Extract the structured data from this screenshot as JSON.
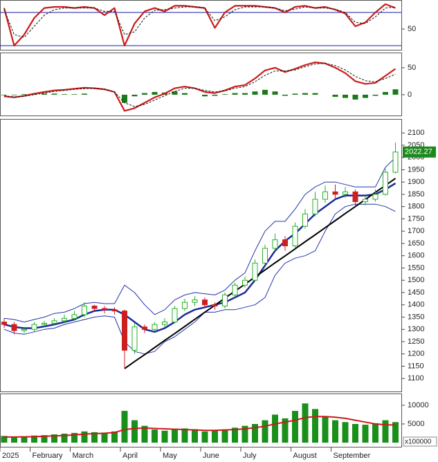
{
  "chart_data": [
    {
      "type": "line",
      "ylim": [
        15,
        100
      ],
      "yticks": [
        50
      ],
      "hlines": [
        80,
        20
      ],
      "hline_color": "#1a1aa0",
      "series": [
        {
          "color": "#cc1a1a",
          "linewidth": 2.2,
          "values": [
            88,
            20,
            40,
            70,
            88,
            90,
            90,
            88,
            90,
            88,
            75,
            88,
            20,
            60,
            82,
            88,
            82,
            92,
            92,
            90,
            88,
            52,
            80,
            92,
            92,
            92,
            90,
            88,
            80,
            90,
            92,
            88,
            90,
            85,
            78,
            55,
            62,
            80,
            95,
            88
          ]
        },
        {
          "color": "#111111",
          "linewidth": 1,
          "line_style": "dashed",
          "values": [
            85,
            40,
            35,
            55,
            75,
            85,
            88,
            88,
            88,
            88,
            82,
            82,
            40,
            45,
            70,
            84,
            85,
            88,
            90,
            90,
            88,
            65,
            72,
            85,
            90,
            90,
            90,
            88,
            83,
            86,
            90,
            88,
            88,
            86,
            80,
            62,
            60,
            72,
            88,
            90
          ]
        }
      ]
    },
    {
      "type": "combo",
      "ylim": [
        -36,
        73
      ],
      "yticks": [
        0,
        50
      ],
      "bars": {
        "color": "#1a7a1a",
        "values": [
          -1,
          -1,
          1,
          2,
          2,
          2,
          1,
          1,
          2,
          0,
          0,
          0,
          -15,
          -3,
          3,
          5,
          4,
          6,
          3,
          0,
          -3,
          -2,
          1,
          3,
          3,
          6,
          9,
          6,
          -2,
          2,
          3,
          3,
          0,
          -4,
          -6,
          -9,
          -6,
          -2,
          5,
          10
        ]
      },
      "series": [
        {
          "color": "#cc1a1a",
          "linewidth": 2.2,
          "values": [
            -3,
            -5,
            -2,
            2,
            5,
            8,
            9,
            11,
            13,
            12,
            10,
            5,
            -30,
            -25,
            -15,
            -5,
            2,
            12,
            15,
            12,
            5,
            3,
            8,
            15,
            18,
            30,
            45,
            50,
            42,
            48,
            55,
            60,
            58,
            50,
            40,
            25,
            20,
            22,
            35,
            48
          ]
        },
        {
          "color": "#111111",
          "linewidth": 1,
          "line_style": "dashed",
          "values": [
            -2,
            -4,
            -3,
            0,
            3,
            6,
            8,
            10,
            11,
            12,
            10,
            5,
            -15,
            -22,
            -18,
            -10,
            -2,
            6,
            12,
            12,
            8,
            5,
            7,
            12,
            15,
            24,
            36,
            44,
            44,
            46,
            52,
            57,
            58,
            54,
            46,
            34,
            26,
            24,
            30,
            38
          ]
        }
      ]
    },
    {
      "type": "candlestick",
      "ylim": [
        1050,
        2140
      ],
      "yticks": [
        1100,
        1150,
        1200,
        1250,
        1300,
        1350,
        1400,
        1450,
        1500,
        1550,
        1600,
        1650,
        1700,
        1750,
        1800,
        1850,
        1900,
        1950,
        2000,
        2050,
        2100
      ],
      "up_color": "#22b022",
      "down_color": "#cc2020",
      "last_label_color": "#1a8a1a",
      "open": [
        1330,
        1320,
        1295,
        1300,
        1320,
        1325,
        1335,
        1345,
        1360,
        1395,
        1385,
        1380,
        1375,
        1215,
        1310,
        1300,
        1320,
        1330,
        1385,
        1410,
        1420,
        1400,
        1395,
        1440,
        1480,
        1500,
        1570,
        1630,
        1665,
        1640,
        1720,
        1770,
        1830,
        1860,
        1850,
        1860,
        1820,
        1830,
        1850,
        1940
      ],
      "high": [
        1345,
        1330,
        1310,
        1330,
        1335,
        1345,
        1360,
        1375,
        1410,
        1400,
        1395,
        1390,
        1380,
        1325,
        1320,
        1330,
        1345,
        1395,
        1425,
        1435,
        1430,
        1410,
        1450,
        1490,
        1515,
        1585,
        1645,
        1690,
        1680,
        1735,
        1790,
        1860,
        1885,
        1890,
        1880,
        1870,
        1845,
        1870,
        1955,
        2060
      ],
      "low": [
        1305,
        1280,
        1285,
        1292,
        1310,
        1315,
        1325,
        1335,
        1350,
        1372,
        1365,
        1360,
        1140,
        1200,
        1285,
        1290,
        1310,
        1325,
        1375,
        1395,
        1385,
        1380,
        1385,
        1430,
        1470,
        1495,
        1560,
        1620,
        1620,
        1630,
        1710,
        1760,
        1815,
        1830,
        1835,
        1800,
        1805,
        1820,
        1845,
        1935
      ],
      "close": [
        1320,
        1295,
        1300,
        1320,
        1325,
        1335,
        1345,
        1360,
        1395,
        1385,
        1380,
        1375,
        1215,
        1310,
        1300,
        1320,
        1330,
        1385,
        1410,
        1420,
        1400,
        1395,
        1440,
        1480,
        1500,
        1570,
        1630,
        1665,
        1640,
        1720,
        1770,
        1830,
        1860,
        1850,
        1860,
        1820,
        1830,
        1850,
        1940,
        2022.27
      ],
      "series": [
        {
          "color": "#2233aa",
          "linewidth": 1,
          "values": [
            1345,
            1340,
            1330,
            1340,
            1350,
            1365,
            1370,
            1385,
            1405,
            1410,
            1405,
            1405,
            1480,
            1450,
            1400,
            1360,
            1380,
            1420,
            1440,
            1450,
            1445,
            1440,
            1460,
            1500,
            1530,
            1620,
            1700,
            1740,
            1740,
            1790,
            1850,
            1880,
            1900,
            1900,
            1890,
            1880,
            1880,
            1880,
            1960,
            2000
          ]
        },
        {
          "color": "#2233aa",
          "linewidth": 1,
          "values": [
            1300,
            1285,
            1280,
            1290,
            1300,
            1305,
            1320,
            1330,
            1340,
            1350,
            1355,
            1350,
            1250,
            1210,
            1200,
            1210,
            1250,
            1270,
            1300,
            1330,
            1370,
            1370,
            1380,
            1380,
            1390,
            1400,
            1430,
            1520,
            1570,
            1590,
            1600,
            1620,
            1700,
            1770,
            1800,
            1810,
            1810,
            1810,
            1800,
            1780
          ]
        },
        {
          "color": "#1a2a9a",
          "linewidth": 2.5,
          "values": [
            1320,
            1310,
            1305,
            1305,
            1312,
            1320,
            1330,
            1340,
            1360,
            1375,
            1380,
            1380,
            1360,
            1330,
            1300,
            1290,
            1305,
            1330,
            1360,
            1380,
            1390,
            1400,
            1410,
            1430,
            1450,
            1500,
            1560,
            1620,
            1660,
            1690,
            1730,
            1770,
            1800,
            1830,
            1845,
            1845,
            1845,
            1850,
            1870,
            1895
          ]
        },
        {
          "color": "#000000",
          "linewidth": 2,
          "values": [
            null,
            null,
            null,
            null,
            null,
            null,
            null,
            null,
            null,
            null,
            null,
            null,
            1140,
            1169,
            1197,
            1226,
            1255,
            1283,
            1312,
            1341,
            1370,
            1398,
            1427,
            1456,
            1484,
            1513,
            1542,
            1571,
            1599,
            1628,
            1657,
            1685,
            1714,
            1743,
            1772,
            1800,
            1829,
            1858,
            1886,
            1915
          ]
        }
      ]
    },
    {
      "type": "bar",
      "ylim": [
        0,
        12500
      ],
      "yticks": [
        5000,
        10000
      ],
      "y_label": "x100000",
      "categories": [
        "2025",
        null,
        null,
        "February",
        null,
        null,
        null,
        "March",
        null,
        null,
        null,
        null,
        "April",
        null,
        null,
        null,
        "May",
        null,
        null,
        null,
        "June",
        null,
        null,
        null,
        "July",
        null,
        null,
        null,
        null,
        "August",
        null,
        null,
        null,
        "September",
        null,
        null,
        null,
        null,
        null,
        null
      ],
      "color": "#1a8f1a",
      "values": [
        1800,
        1600,
        1700,
        1900,
        2000,
        2200,
        2400,
        2600,
        3000,
        2800,
        2700,
        3000,
        8500,
        6000,
        4500,
        3500,
        3200,
        3500,
        3800,
        3600,
        3000,
        3200,
        3500,
        4000,
        4500,
        5000,
        6000,
        7500,
        6500,
        8500,
        10500,
        9000,
        7000,
        6000,
        5500,
        5000,
        4800,
        5200,
        6000,
        5500
      ],
      "series": [
        {
          "color": "#cc1a1a",
          "linewidth": 2,
          "values": [
            1500,
            1500,
            1550,
            1600,
            1700,
            1800,
            1900,
            2100,
            2300,
            2400,
            2500,
            2700,
            3500,
            3800,
            3900,
            3800,
            3700,
            3600,
            3500,
            3400,
            3300,
            3300,
            3400,
            3500,
            3700,
            4000,
            4400,
            5000,
            5500,
            6000,
            6700,
            7000,
            7000,
            6800,
            6500,
            6000,
            5500,
            5000,
            4800,
            4700
          ]
        }
      ]
    }
  ]
}
